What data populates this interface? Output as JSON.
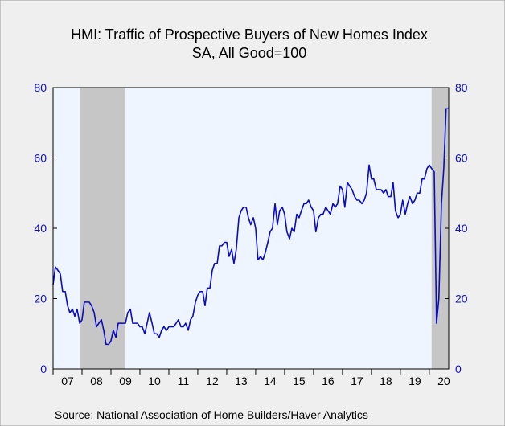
{
  "chart_data": {
    "type": "line",
    "title": "HMI: Traffic of Prospective Buyers of New Homes Index",
    "subtitle": "SA, All Good=100",
    "source": "Source:  National Association of Home Builders/Haver Analytics",
    "ylim": [
      0,
      80
    ],
    "y_ticks": [
      0,
      20,
      40,
      60,
      80
    ],
    "x_range": [
      2007,
      2020.67
    ],
    "x_ticks": [
      "07",
      "08",
      "09",
      "10",
      "11",
      "12",
      "13",
      "14",
      "15",
      "16",
      "17",
      "18",
      "19",
      "20"
    ],
    "grid": false,
    "recessions": [
      [
        2007.92,
        2009.5
      ],
      [
        2020.08,
        2020.67
      ]
    ],
    "colors": {
      "line": "#0b0bbf",
      "plot_bg": "#eef5fe",
      "recession": "#c6c6c6",
      "axis_text": "#1010c0",
      "title_text": "#000000"
    },
    "series": [
      {
        "values": [
          [
            2007.0,
            24
          ],
          [
            2007.08,
            29
          ],
          [
            2007.17,
            28
          ],
          [
            2007.25,
            27
          ],
          [
            2007.33,
            22
          ],
          [
            2007.42,
            22
          ],
          [
            2007.5,
            18
          ],
          [
            2007.58,
            16
          ],
          [
            2007.67,
            17
          ],
          [
            2007.75,
            15
          ],
          [
            2007.83,
            17
          ],
          [
            2007.92,
            13
          ],
          [
            2008.0,
            14
          ],
          [
            2008.08,
            19
          ],
          [
            2008.17,
            19
          ],
          [
            2008.25,
            19
          ],
          [
            2008.33,
            18
          ],
          [
            2008.42,
            16
          ],
          [
            2008.5,
            12
          ],
          [
            2008.58,
            13
          ],
          [
            2008.67,
            14
          ],
          [
            2008.75,
            11
          ],
          [
            2008.83,
            7
          ],
          [
            2008.92,
            7
          ],
          [
            2009.0,
            8
          ],
          [
            2009.08,
            11
          ],
          [
            2009.17,
            9
          ],
          [
            2009.25,
            13
          ],
          [
            2009.33,
            13
          ],
          [
            2009.42,
            13
          ],
          [
            2009.5,
            13
          ],
          [
            2009.58,
            16
          ],
          [
            2009.67,
            17
          ],
          [
            2009.75,
            13
          ],
          [
            2009.83,
            13
          ],
          [
            2009.92,
            13
          ],
          [
            2010.0,
            12
          ],
          [
            2010.08,
            12
          ],
          [
            2010.17,
            10
          ],
          [
            2010.25,
            13
          ],
          [
            2010.33,
            16
          ],
          [
            2010.42,
            13
          ],
          [
            2010.5,
            10
          ],
          [
            2010.58,
            10
          ],
          [
            2010.67,
            9
          ],
          [
            2010.75,
            11
          ],
          [
            2010.83,
            12
          ],
          [
            2010.92,
            11
          ],
          [
            2011.0,
            12
          ],
          [
            2011.08,
            12
          ],
          [
            2011.17,
            12
          ],
          [
            2011.25,
            13
          ],
          [
            2011.33,
            14
          ],
          [
            2011.42,
            12
          ],
          [
            2011.5,
            12
          ],
          [
            2011.58,
            13
          ],
          [
            2011.67,
            11
          ],
          [
            2011.75,
            14
          ],
          [
            2011.83,
            15
          ],
          [
            2011.92,
            19
          ],
          [
            2012.0,
            21
          ],
          [
            2012.08,
            22
          ],
          [
            2012.17,
            22
          ],
          [
            2012.25,
            18
          ],
          [
            2012.33,
            23
          ],
          [
            2012.42,
            23
          ],
          [
            2012.5,
            28
          ],
          [
            2012.58,
            30
          ],
          [
            2012.67,
            30
          ],
          [
            2012.75,
            35
          ],
          [
            2012.83,
            35
          ],
          [
            2012.92,
            36
          ],
          [
            2013.0,
            36
          ],
          [
            2013.08,
            32
          ],
          [
            2013.17,
            34
          ],
          [
            2013.25,
            30
          ],
          [
            2013.33,
            34
          ],
          [
            2013.42,
            43
          ],
          [
            2013.5,
            45
          ],
          [
            2013.58,
            46
          ],
          [
            2013.67,
            46
          ],
          [
            2013.75,
            43
          ],
          [
            2013.83,
            41
          ],
          [
            2013.92,
            43
          ],
          [
            2014.0,
            40
          ],
          [
            2014.08,
            31
          ],
          [
            2014.17,
            32
          ],
          [
            2014.25,
            31
          ],
          [
            2014.33,
            33
          ],
          [
            2014.42,
            36
          ],
          [
            2014.5,
            39
          ],
          [
            2014.58,
            40
          ],
          [
            2014.67,
            47
          ],
          [
            2014.75,
            41
          ],
          [
            2014.83,
            45
          ],
          [
            2014.92,
            46
          ],
          [
            2015.0,
            44
          ],
          [
            2015.08,
            39
          ],
          [
            2015.17,
            37
          ],
          [
            2015.25,
            40
          ],
          [
            2015.33,
            39
          ],
          [
            2015.42,
            44
          ],
          [
            2015.5,
            43
          ],
          [
            2015.58,
            45
          ],
          [
            2015.67,
            47
          ],
          [
            2015.75,
            47
          ],
          [
            2015.83,
            48
          ],
          [
            2015.92,
            46
          ],
          [
            2016.0,
            45
          ],
          [
            2016.08,
            39
          ],
          [
            2016.17,
            43
          ],
          [
            2016.25,
            44
          ],
          [
            2016.33,
            44
          ],
          [
            2016.42,
            46
          ],
          [
            2016.5,
            45
          ],
          [
            2016.58,
            44
          ],
          [
            2016.67,
            47
          ],
          [
            2016.75,
            46
          ],
          [
            2016.83,
            47
          ],
          [
            2016.92,
            52
          ],
          [
            2017.0,
            51
          ],
          [
            2017.08,
            46
          ],
          [
            2017.17,
            53
          ],
          [
            2017.25,
            52
          ],
          [
            2017.33,
            51
          ],
          [
            2017.42,
            49
          ],
          [
            2017.5,
            48
          ],
          [
            2017.58,
            48
          ],
          [
            2017.67,
            47
          ],
          [
            2017.75,
            48
          ],
          [
            2017.83,
            50
          ],
          [
            2017.92,
            58
          ],
          [
            2018.0,
            54
          ],
          [
            2018.08,
            54
          ],
          [
            2018.17,
            51
          ],
          [
            2018.25,
            51
          ],
          [
            2018.33,
            51
          ],
          [
            2018.42,
            50
          ],
          [
            2018.5,
            51
          ],
          [
            2018.58,
            49
          ],
          [
            2018.67,
            49
          ],
          [
            2018.75,
            53
          ],
          [
            2018.83,
            45
          ],
          [
            2018.92,
            43
          ],
          [
            2019.0,
            44
          ],
          [
            2019.08,
            48
          ],
          [
            2019.17,
            44
          ],
          [
            2019.25,
            47
          ],
          [
            2019.33,
            49
          ],
          [
            2019.42,
            47
          ],
          [
            2019.5,
            48
          ],
          [
            2019.58,
            50
          ],
          [
            2019.67,
            50
          ],
          [
            2019.75,
            54
          ],
          [
            2019.83,
            54
          ],
          [
            2019.92,
            57
          ],
          [
            2020.0,
            58
          ],
          [
            2020.08,
            57
          ],
          [
            2020.17,
            56
          ],
          [
            2020.25,
            13
          ],
          [
            2020.33,
            20
          ],
          [
            2020.42,
            47
          ],
          [
            2020.5,
            57
          ],
          [
            2020.58,
            74
          ],
          [
            2020.67,
            74
          ]
        ]
      }
    ]
  }
}
